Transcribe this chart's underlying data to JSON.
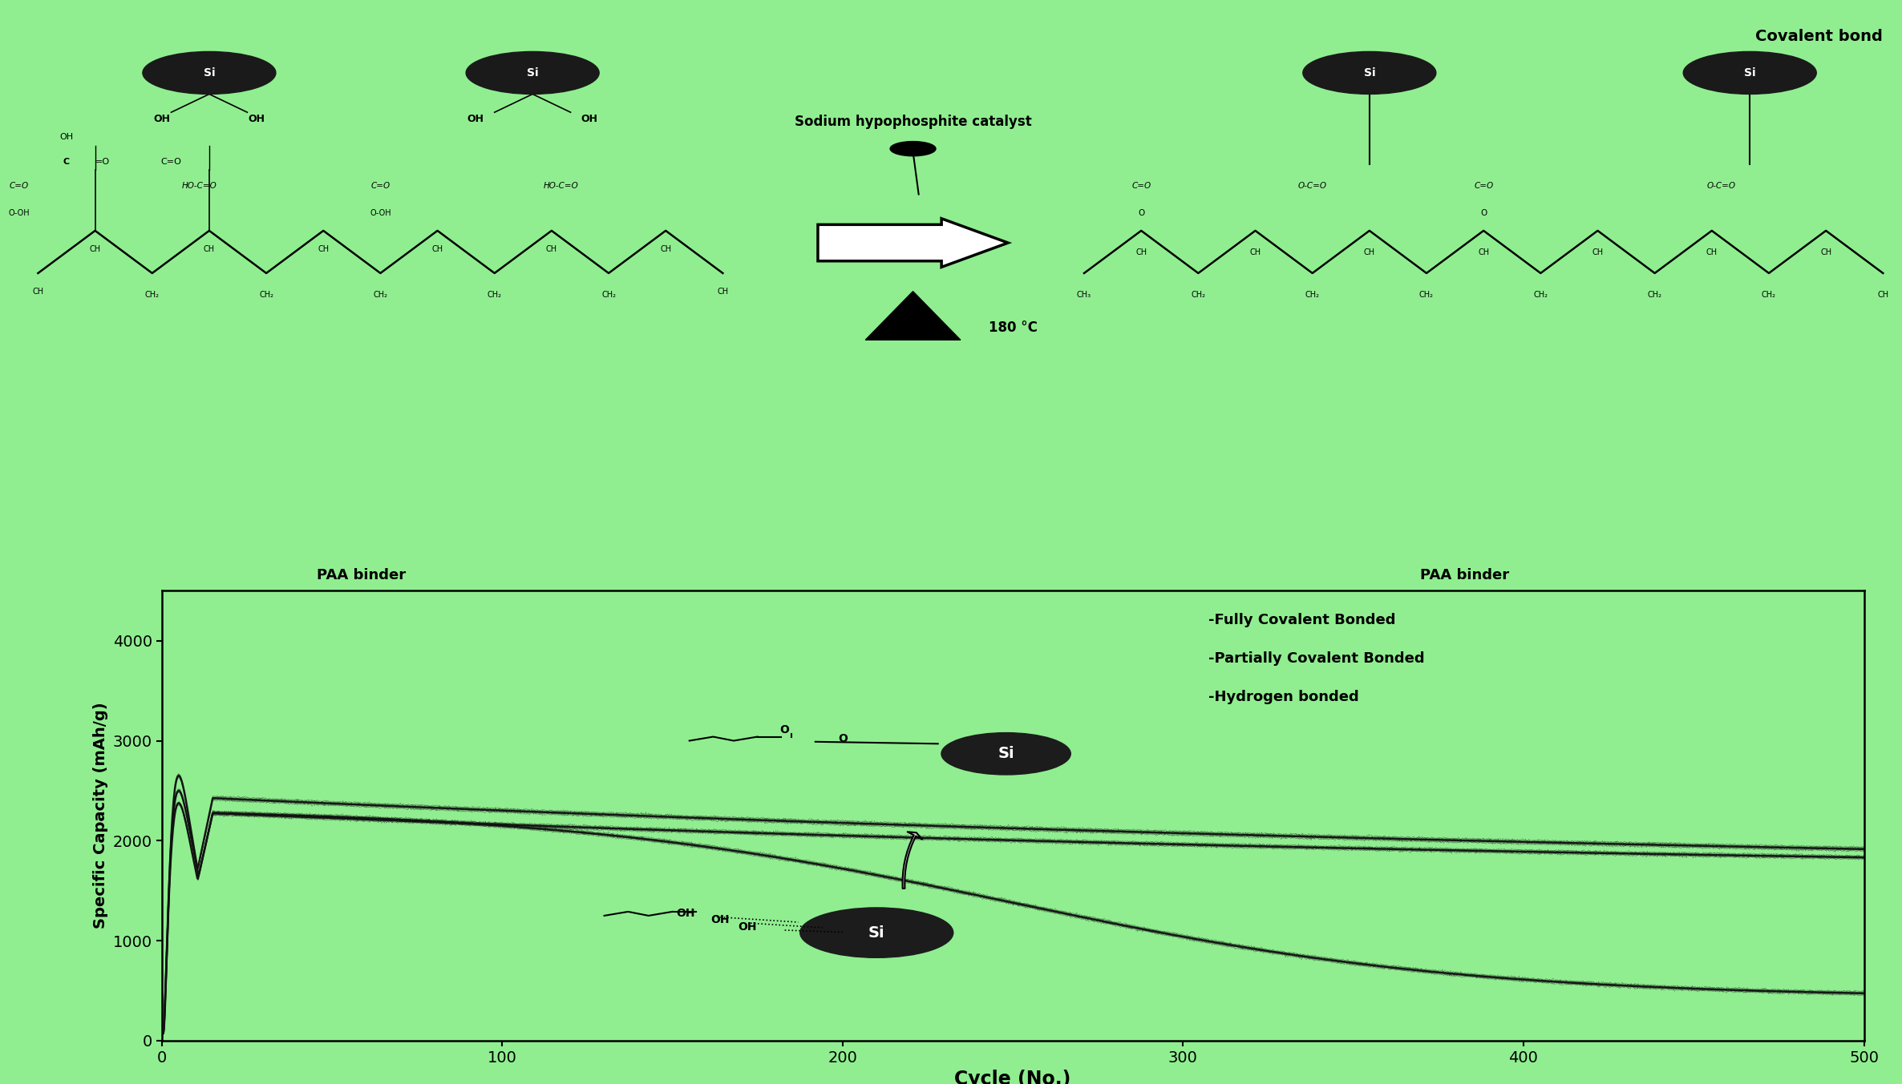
{
  "bg_color": "#90EE90",
  "fig_width": 23.72,
  "fig_height": 13.53,
  "dpi": 100,
  "top_panel_text": {
    "sodium_catalyst": "Sodium hypophosphite catalyst",
    "temp": "180 °C",
    "paa_left": "PAA binder",
    "paa_right": "PAA binder",
    "covalent": "Covalent bond"
  },
  "xlabel": "Cycle (No.)",
  "ylabel": "Specific Capacity (mAh/g)",
  "xlim": [
    0,
    500
  ],
  "ylim": [
    0,
    4500
  ],
  "xticks": [
    0,
    100,
    200,
    300,
    400,
    500
  ],
  "yticks": [
    0,
    1000,
    2000,
    3000,
    4000
  ],
  "legend_labels": [
    "-Fully Covalent Bonded",
    "-Partially Covalent Bonded",
    "-Hydrogen bonded"
  ],
  "line_color": "#111111",
  "plot_bg": "#90EE90"
}
